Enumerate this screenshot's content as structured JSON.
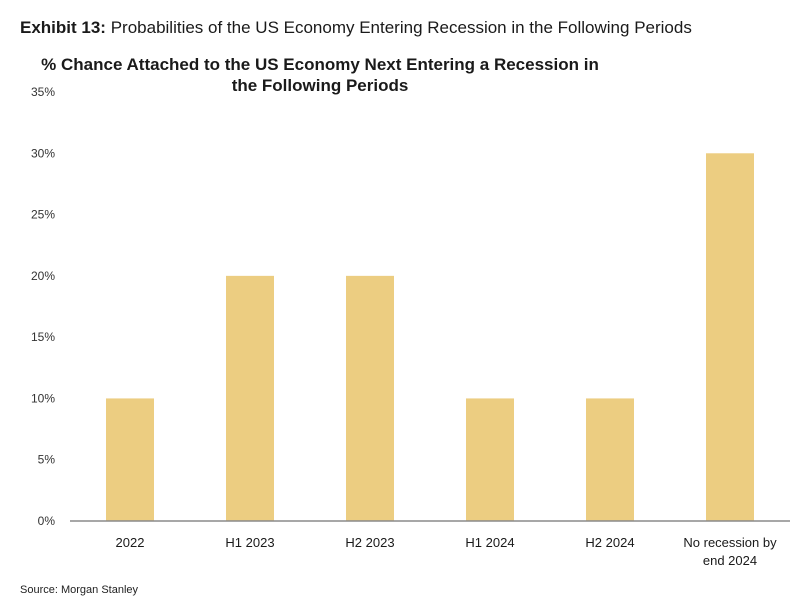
{
  "header": {
    "exhibit_label": "Exhibit 13:",
    "exhibit_title": "Probabilities of the US Economy Entering Recession in the Following Periods"
  },
  "chart_data": {
    "type": "bar",
    "title_lines": [
      "% Chance Attached to the US Economy Next Entering a Recession in",
      "the Following Periods"
    ],
    "categories": [
      "2022",
      "H1 2023",
      "H2 2023",
      "H1 2024",
      "H2 2024",
      "No recession by end 2024"
    ],
    "category_lines": [
      [
        "2022"
      ],
      [
        "H1 2023"
      ],
      [
        "H2 2023"
      ],
      [
        "H1 2024"
      ],
      [
        "H2 2024"
      ],
      [
        "No recession by",
        "end 2024"
      ]
    ],
    "values": [
      10,
      20,
      20,
      10,
      10,
      30
    ],
    "ylim": [
      0,
      35
    ],
    "yticks": [
      0,
      5,
      10,
      15,
      20,
      25,
      30,
      35
    ],
    "ytick_suffix": "%",
    "grid": false,
    "colors": {
      "bar": "#ECCD81",
      "axis": "#8a8a8a"
    }
  },
  "footer": {
    "source": "Source: Morgan Stanley"
  }
}
